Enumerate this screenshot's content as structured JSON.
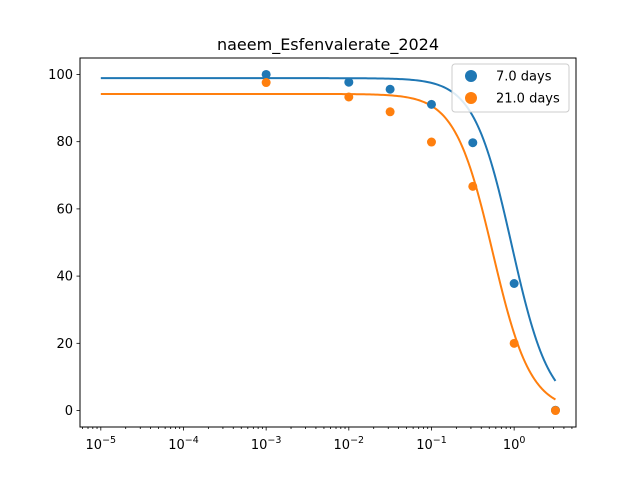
{
  "chart_data": {
    "type": "scatter",
    "title": "naeem_Esfenvalerate_2024",
    "xlabel": "",
    "ylabel": "",
    "xscale": "log",
    "xlim": [
      5.6e-06,
      5.6
    ],
    "ylim": [
      -4.9,
      104.9
    ],
    "x_ticks": [
      {
        "value": 1e-05,
        "base": "10",
        "exp": "−5"
      },
      {
        "value": 0.0001,
        "base": "10",
        "exp": "−4"
      },
      {
        "value": 0.001,
        "base": "10",
        "exp": "−3"
      },
      {
        "value": 0.01,
        "base": "10",
        "exp": "−2"
      },
      {
        "value": 0.1,
        "base": "10",
        "exp": "−1"
      },
      {
        "value": 1,
        "base": "10",
        "exp": "0"
      }
    ],
    "y_ticks": [
      {
        "value": 0,
        "label": "0"
      },
      {
        "value": 20,
        "label": "20"
      },
      {
        "value": 40,
        "label": "40"
      },
      {
        "value": 60,
        "label": "60"
      },
      {
        "value": 80,
        "label": "80"
      },
      {
        "value": 100,
        "label": "100"
      }
    ],
    "grid": false,
    "legend_position": "top-right",
    "series": [
      {
        "name": "7.0 days",
        "color": "#1f77b4",
        "points": [
          {
            "x": 0.001,
            "y": 100
          },
          {
            "x": 0.01,
            "y": 97.7
          },
          {
            "x": 0.0316,
            "y": 95.6
          },
          {
            "x": 0.1,
            "y": 91.1
          },
          {
            "x": 0.316,
            "y": 79.7
          },
          {
            "x": 1.0,
            "y": 37.8
          },
          {
            "x": 3.16,
            "y": 0.1
          }
        ],
        "fit": {
          "model": "log-logistic",
          "top": 98.9,
          "ec50": 0.93,
          "slope": 1.9
        }
      },
      {
        "name": "21.0 days",
        "color": "#ff7f0e",
        "points": [
          {
            "x": 0.001,
            "y": 97.6
          },
          {
            "x": 0.01,
            "y": 93.3
          },
          {
            "x": 0.0316,
            "y": 88.9
          },
          {
            "x": 0.1,
            "y": 79.9
          },
          {
            "x": 0.316,
            "y": 66.7
          },
          {
            "x": 1.0,
            "y": 20.0
          },
          {
            "x": 3.16,
            "y": 0.0
          }
        ],
        "fit": {
          "model": "log-logistic",
          "top": 94.2,
          "ec50": 0.55,
          "slope": 1.9
        }
      }
    ]
  }
}
